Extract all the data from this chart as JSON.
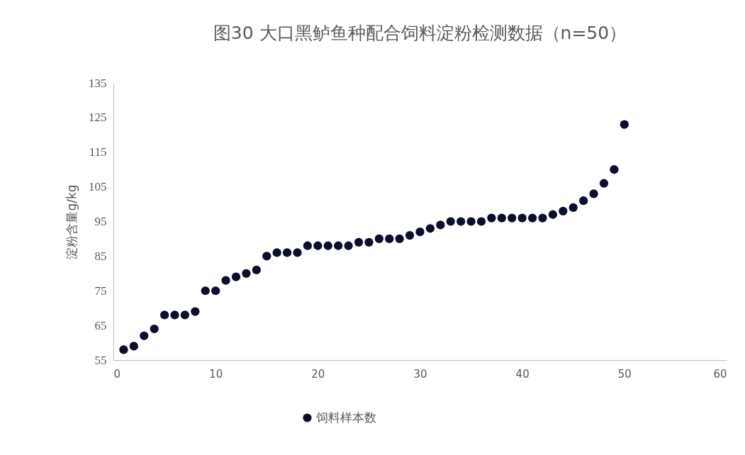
{
  "chart_data": {
    "type": "scatter",
    "title": "图30 大口黑鲈鱼种配合饲料淀粉检测数据（n=50）",
    "ylabel": "淀粉含量g/kg",
    "x": [
      1,
      2,
      3,
      4,
      5,
      6,
      7,
      8,
      9,
      10,
      11,
      12,
      13,
      14,
      15,
      16,
      17,
      18,
      19,
      20,
      21,
      22,
      23,
      24,
      25,
      26,
      27,
      28,
      29,
      30,
      31,
      32,
      33,
      34,
      35,
      36,
      37,
      38,
      39,
      40,
      41,
      42,
      43,
      44,
      45,
      46,
      47,
      48,
      49,
      50
    ],
    "series": [
      {
        "name": "饲料样本数",
        "color": "#0b0e2c",
        "values": [
          58,
          59,
          62,
          64,
          68,
          68,
          68,
          69,
          75,
          75,
          78,
          79,
          80,
          81,
          85,
          86,
          86,
          86,
          88,
          88,
          88,
          88,
          88,
          89,
          89,
          90,
          90,
          90,
          91,
          92,
          93,
          94,
          95,
          95,
          95,
          95,
          96,
          96,
          96,
          96,
          96,
          96,
          97,
          98,
          99,
          101,
          103,
          106,
          110,
          123
        ]
      }
    ],
    "xlim": [
      0,
      60
    ],
    "xticks": [
      0,
      10,
      20,
      30,
      40,
      50,
      60
    ],
    "ylim": [
      55,
      135
    ],
    "yticks": [
      55,
      65,
      75,
      85,
      95,
      105,
      115,
      125,
      135
    ],
    "marker": "circle",
    "legend": "bottom",
    "grid": false
  }
}
